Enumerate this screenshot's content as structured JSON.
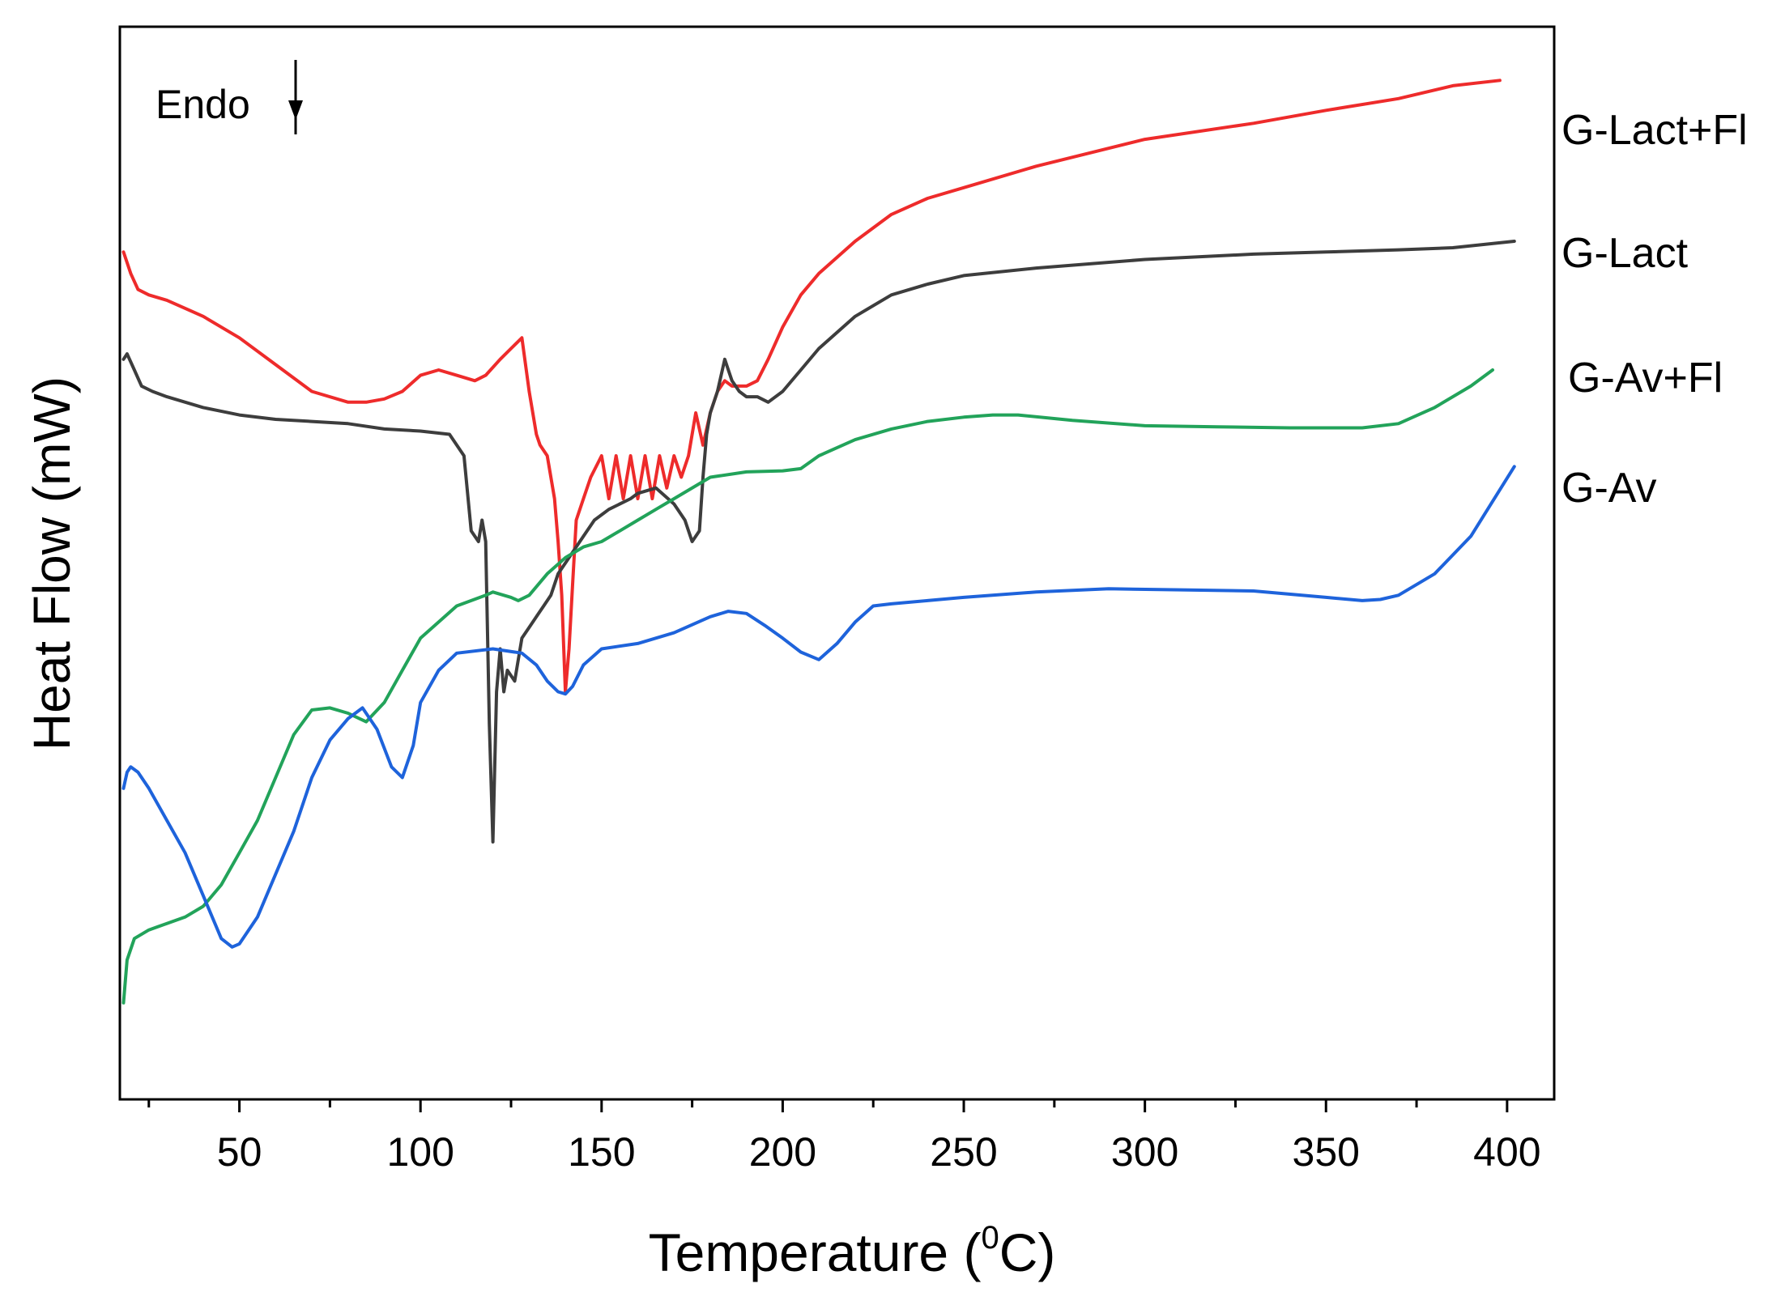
{
  "chart_data": {
    "type": "line",
    "title": "",
    "xlabel_main": "Temperature (",
    "xlabel_sup": "0",
    "xlabel_end": "C)",
    "ylabel": "Heat Flow (mW)",
    "xlim": [
      17,
      413
    ],
    "ylim": [
      0,
      100
    ],
    "xticks": [
      50,
      100,
      150,
      200,
      250,
      300,
      350,
      400
    ],
    "ytick_labels": false,
    "annotation": "Endo",
    "series": [
      {
        "name": "G-Lact+Fl",
        "color": "#ee2b2b",
        "x": [
          18,
          20,
          22,
          25,
          30,
          40,
          50,
          60,
          70,
          80,
          85,
          90,
          95,
          100,
          105,
          110,
          115,
          118,
          122,
          125,
          128,
          130,
          132,
          133,
          135,
          137,
          138,
          139,
          140,
          141,
          142,
          143,
          145,
          147,
          150,
          152,
          154,
          156,
          158,
          160,
          162,
          164,
          166,
          168,
          170,
          172,
          174,
          176,
          178,
          180,
          182,
          184,
          186,
          190,
          193,
          196,
          200,
          205,
          210,
          220,
          230,
          240,
          250,
          270,
          300,
          330,
          350,
          370,
          385,
          398
        ],
        "y": [
          79,
          77,
          75.5,
          75,
          74.5,
          73,
          71,
          68.5,
          66,
          65,
          65,
          65.3,
          66,
          67.5,
          68,
          67.5,
          67,
          67.5,
          69,
          70,
          71,
          66,
          62,
          61,
          60,
          56,
          52,
          47,
          38,
          42,
          48,
          54,
          56,
          58,
          60,
          56,
          60,
          56,
          60,
          56,
          60,
          56,
          60,
          57,
          60,
          58,
          60,
          64,
          61,
          64,
          66,
          67,
          66.5,
          66.5,
          67,
          69,
          72,
          75,
          77,
          80,
          82.5,
          84,
          85,
          87,
          89.5,
          91,
          92.2,
          93.3,
          94.5,
          95
        ]
      },
      {
        "name": "G-Lact",
        "color": "#3d3d3d",
        "x": [
          18,
          19,
          21,
          23,
          26,
          30,
          40,
          50,
          60,
          70,
          80,
          90,
          100,
          108,
          112,
          114,
          116,
          117,
          118,
          119,
          120,
          121,
          122,
          123,
          124,
          126,
          128,
          130,
          132,
          134,
          136,
          138,
          140,
          142,
          145,
          148,
          150,
          152,
          155,
          158,
          160,
          165,
          170,
          173,
          175,
          177,
          178,
          179,
          180,
          182,
          184,
          185,
          186,
          188,
          190,
          193,
          196,
          200,
          205,
          210,
          220,
          230,
          240,
          250,
          270,
          300,
          330,
          350,
          370,
          385,
          402
        ],
        "y": [
          69,
          69.5,
          68,
          66.5,
          66,
          65.5,
          64.5,
          63.8,
          63.4,
          63.2,
          63,
          62.5,
          62.3,
          62,
          60,
          53,
          52,
          54,
          52,
          35,
          24,
          38,
          42,
          38,
          40,
          39,
          43,
          44,
          45,
          46,
          47,
          49,
          50,
          51,
          52.5,
          54,
          54.5,
          55,
          55.5,
          56,
          56.5,
          57,
          55.5,
          54,
          52,
          53,
          58,
          62,
          64,
          66,
          69,
          68,
          67,
          66,
          65.5,
          65.5,
          65,
          66,
          68,
          70,
          73,
          75,
          76,
          76.8,
          77.5,
          78.3,
          78.8,
          79,
          79.2,
          79.4,
          80
        ]
      },
      {
        "name": "G-Av+Fl",
        "color": "#22a35a",
        "x": [
          18,
          19,
          21,
          25,
          30,
          35,
          40,
          45,
          50,
          55,
          60,
          65,
          70,
          75,
          80,
          85,
          90,
          95,
          100,
          110,
          118,
          120,
          125,
          127,
          130,
          135,
          140,
          145,
          150,
          155,
          160,
          165,
          170,
          180,
          190,
          200,
          205,
          210,
          220,
          230,
          240,
          250,
          258,
          265,
          280,
          300,
          320,
          340,
          360,
          370,
          380,
          390,
          396
        ],
        "y": [
          9,
          13,
          15,
          15.8,
          16.4,
          17,
          18,
          20,
          23,
          26,
          30,
          34,
          36.3,
          36.5,
          36,
          35.2,
          37,
          40,
          43,
          46,
          47,
          47.3,
          46.8,
          46.5,
          47,
          49,
          50.5,
          51.5,
          52,
          53,
          54,
          55,
          56,
          58,
          58.5,
          58.6,
          58.8,
          60,
          61.5,
          62.5,
          63.2,
          63.6,
          63.8,
          63.8,
          63.3,
          62.8,
          62.7,
          62.6,
          62.6,
          63,
          64.5,
          66.5,
          68
        ]
      },
      {
        "name": "G-Av",
        "color": "#1e63db",
        "x": [
          18,
          19,
          20,
          22,
          25,
          30,
          35,
          40,
          45,
          48,
          50,
          55,
          60,
          65,
          70,
          75,
          80,
          84,
          88,
          92,
          95,
          98,
          100,
          105,
          110,
          120,
          128,
          132,
          135,
          138,
          140,
          142,
          145,
          150,
          160,
          170,
          180,
          185,
          190,
          195,
          200,
          205,
          210,
          215,
          220,
          225,
          230,
          240,
          250,
          270,
          290,
          310,
          330,
          350,
          360,
          365,
          370,
          380,
          390,
          402
        ],
        "y": [
          29,
          30.5,
          31,
          30.5,
          29,
          26,
          23,
          19,
          15,
          14.2,
          14.5,
          17,
          21,
          25,
          30,
          33.5,
          35.5,
          36.5,
          34.5,
          31,
          30,
          33,
          37,
          40,
          41.6,
          42,
          41.6,
          40.5,
          39,
          38,
          37.8,
          38.5,
          40.5,
          42,
          42.5,
          43.5,
          45,
          45.5,
          45.3,
          44.2,
          43,
          41.7,
          41,
          42.5,
          44.5,
          46,
          46.2,
          46.5,
          46.8,
          47.3,
          47.6,
          47.5,
          47.4,
          46.8,
          46.5,
          46.6,
          47,
          49,
          52.5,
          59
        ]
      }
    ]
  }
}
